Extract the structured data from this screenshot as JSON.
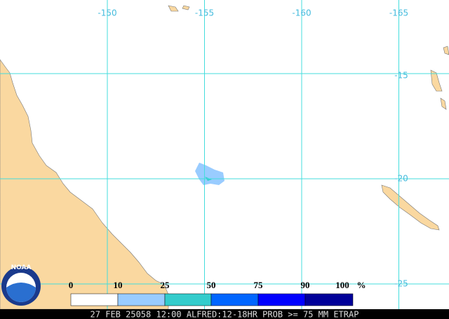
{
  "map": {
    "longitude_labels": [
      -150,
      -155,
      -160,
      -165
    ],
    "latitude_labels": [
      -15,
      -20,
      -25
    ],
    "legend": {
      "labels": [
        0,
        10,
        25,
        50,
        75,
        90,
        100
      ],
      "unit": "%",
      "colors": [
        "#ffffff",
        "#99ccff",
        "#33cccc",
        "#0066ff",
        "#0000ff",
        "#000099"
      ]
    },
    "logo": "NOAA",
    "footer": "27 FEB 25058 12:00 ALFRED:12-18HR PROB >= 75 MM ETRAP"
  }
}
